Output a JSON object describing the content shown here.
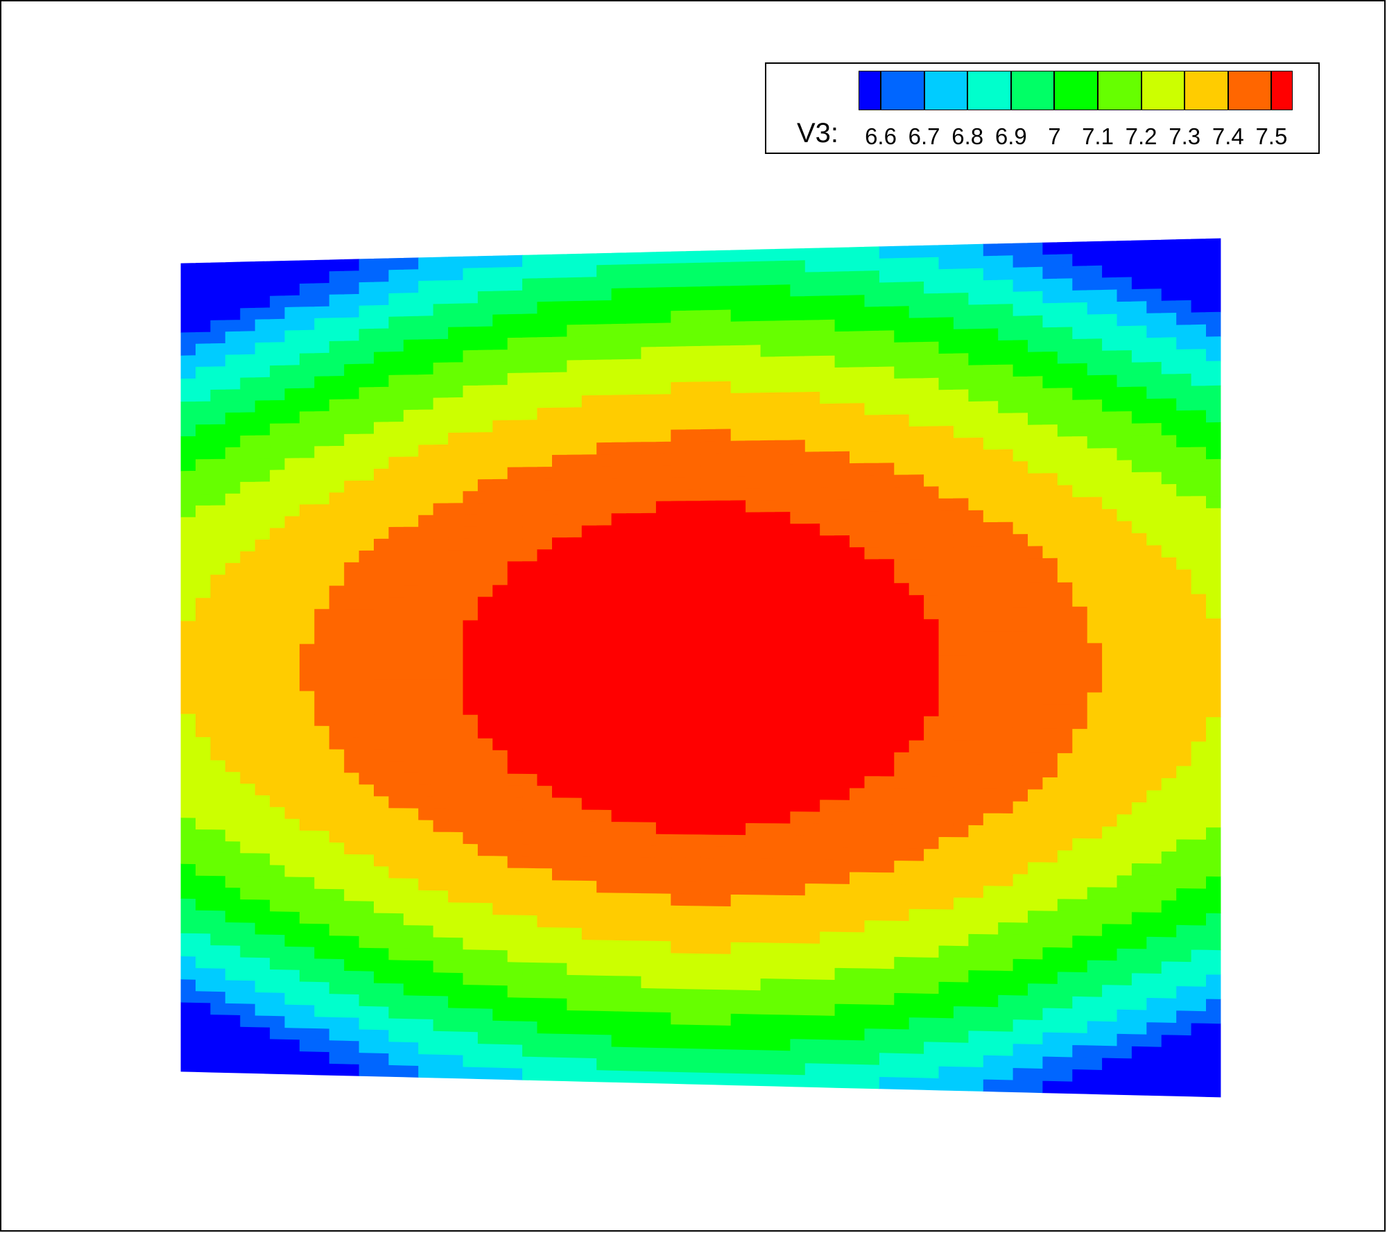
{
  "chart_data": {
    "type": "heatmap",
    "title": "",
    "variable": "V3:",
    "colorbar": {
      "levels": [
        "6.6",
        "6.7",
        "6.8",
        "6.9",
        "7",
        "7.1",
        "7.2",
        "7.3",
        "7.4",
        "7.5"
      ],
      "colors": [
        "#0000ff",
        "#0066ff",
        "#00ccff",
        "#00ffcc",
        "#00ff66",
        "#00ff00",
        "#66ff00",
        "#ccff00",
        "#ffcc00",
        "#ff6600",
        "#ff0000"
      ],
      "placement": "top-right"
    },
    "field": {
      "description_levels": "filled contour bands of V3 over a quadrilateral domain",
      "min_band": "6.6",
      "max_band": "7.5",
      "peak_location": "center"
    }
  }
}
